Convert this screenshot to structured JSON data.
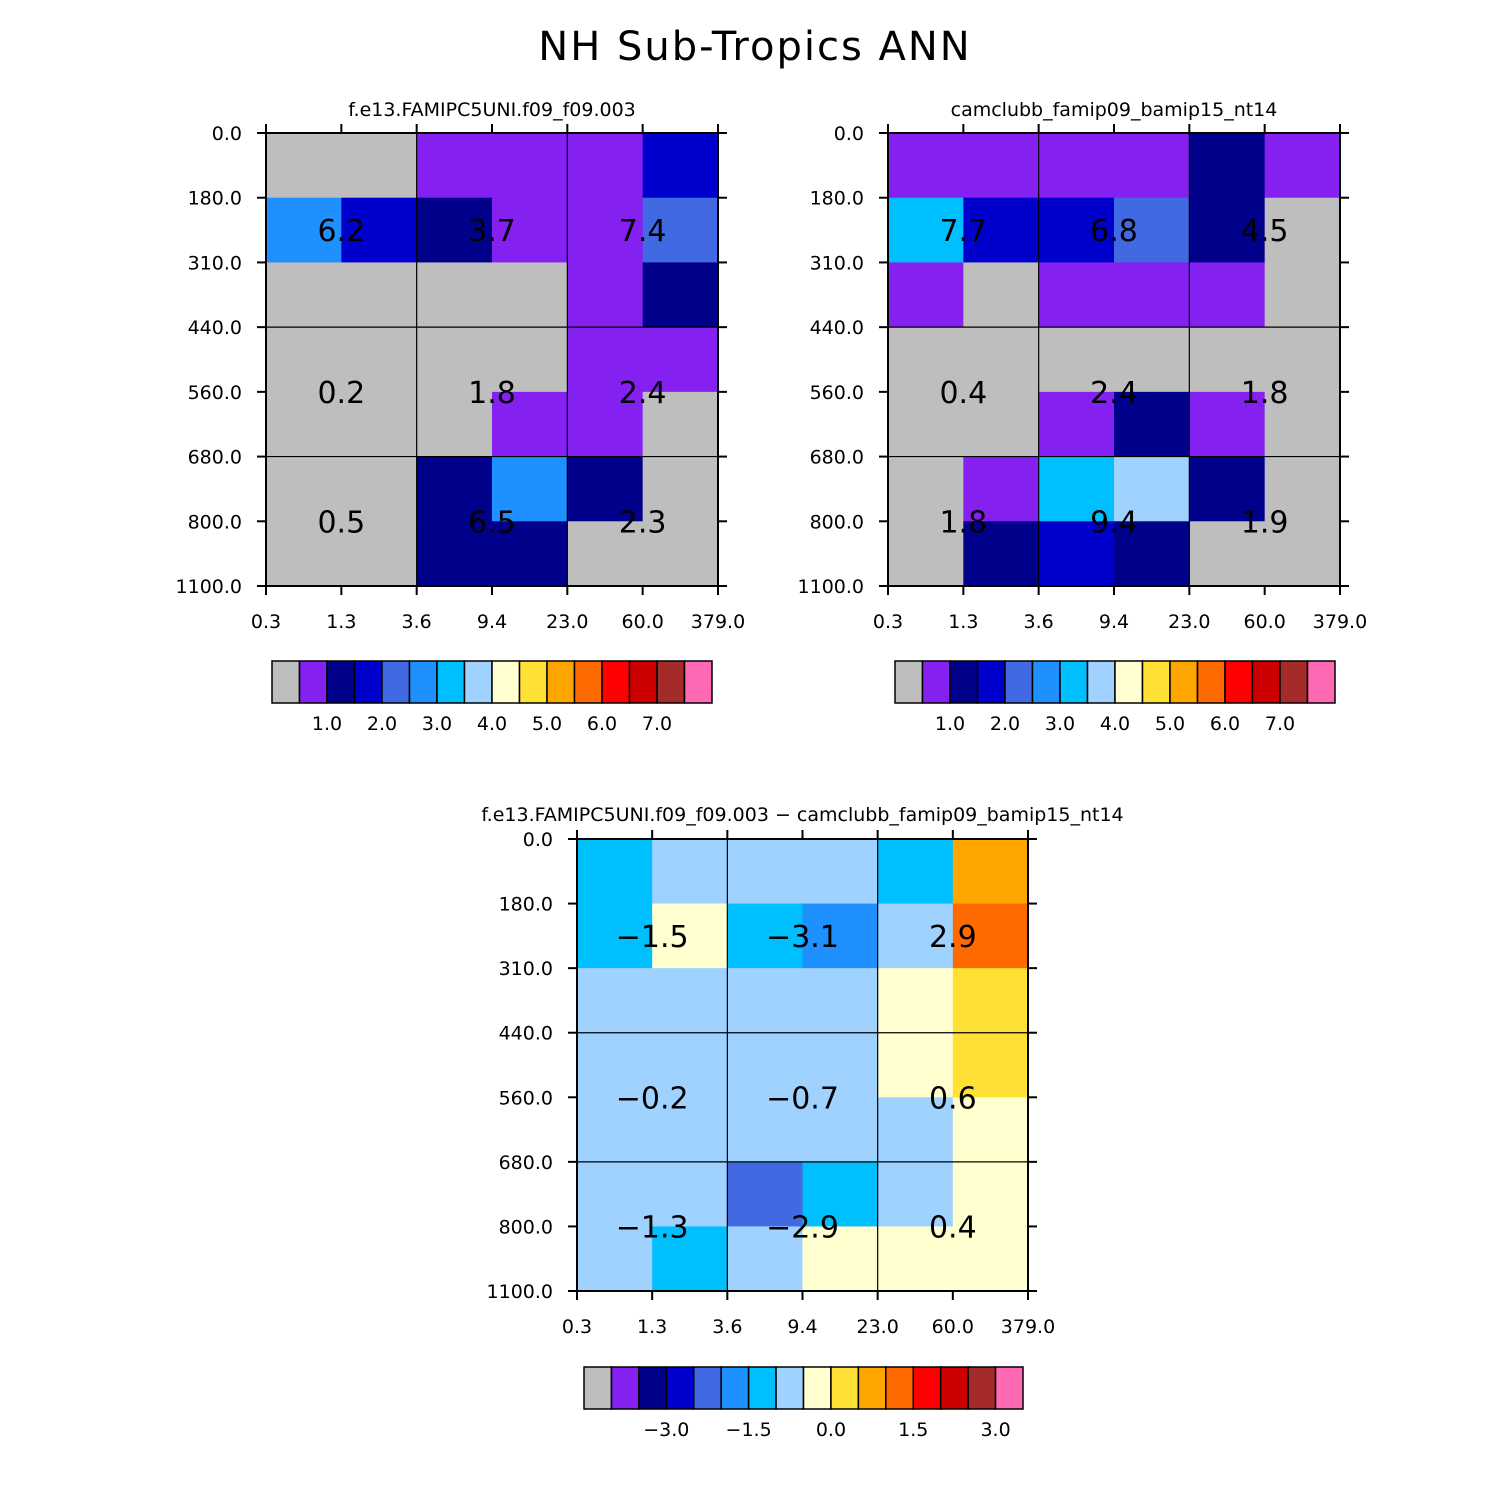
{
  "title": "NH Sub-Tropics ANN",
  "chart_data": [
    {
      "type": "heatmap",
      "title": "f.e13.FAMIPC5UNI.f09_f09.003",
      "x_ticks": [
        "0.3",
        "1.3",
        "3.6",
        "9.4",
        "23.0",
        "60.0",
        "379.0"
      ],
      "y_ticks": [
        "0.0",
        "180.0",
        "310.0",
        "440.0",
        "560.0",
        "680.0",
        "800.0",
        "1100.0"
      ],
      "cells": [
        [
          0,
          0,
          1,
          1,
          1,
          3
        ],
        [
          5,
          3,
          2,
          1,
          1,
          4
        ],
        [
          0,
          0,
          0,
          0,
          1,
          2
        ],
        [
          0,
          0,
          0,
          0,
          1,
          1
        ],
        [
          0,
          0,
          0,
          1,
          1,
          0
        ],
        [
          0,
          0,
          2,
          5,
          2,
          0
        ],
        [
          0,
          0,
          2,
          2,
          0,
          0
        ]
      ],
      "annotations": [
        {
          "row": 0,
          "col": 0,
          "text": "6.2"
        },
        {
          "row": 0,
          "col": 1,
          "text": "3.7"
        },
        {
          "row": 0,
          "col": 2,
          "text": "7.4"
        },
        {
          "row": 1,
          "col": 0,
          "text": "0.2"
        },
        {
          "row": 1,
          "col": 1,
          "text": "1.8"
        },
        {
          "row": 1,
          "col": 2,
          "text": "2.4"
        },
        {
          "row": 2,
          "col": 0,
          "text": "0.5"
        },
        {
          "row": 2,
          "col": 1,
          "text": "6.5"
        },
        {
          "row": 2,
          "col": 2,
          "text": "2.3"
        }
      ],
      "colorbar": {
        "colors": [
          "#bebebe",
          "#8420f0",
          "#00008b",
          "#0000cd",
          "#4169e1",
          "#1e90ff",
          "#00bfff",
          "#a0d2ff",
          "#ffffd0",
          "#ffe135",
          "#ffa500",
          "#ff6a00",
          "#ff0000",
          "#cd0000",
          "#a52a2a",
          "#ff69b4"
        ],
        "labels": [
          "1.0",
          "2.0",
          "3.0",
          "4.0",
          "5.0",
          "6.0",
          "7.0"
        ]
      }
    },
    {
      "type": "heatmap",
      "title": "camclubb_famip09_bamip15_nt14",
      "x_ticks": [
        "0.3",
        "1.3",
        "3.6",
        "9.4",
        "23.0",
        "60.0",
        "379.0"
      ],
      "y_ticks": [
        "0.0",
        "180.0",
        "310.0",
        "440.0",
        "560.0",
        "680.0",
        "800.0",
        "1100.0"
      ],
      "cells": [
        [
          1,
          1,
          1,
          1,
          2,
          1
        ],
        [
          6,
          3,
          3,
          4,
          2,
          0
        ],
        [
          1,
          0,
          1,
          1,
          1,
          0
        ],
        [
          0,
          0,
          0,
          0,
          0,
          0
        ],
        [
          0,
          0,
          1,
          2,
          1,
          0
        ],
        [
          0,
          1,
          6,
          7,
          2,
          0
        ],
        [
          0,
          2,
          3,
          2,
          0,
          0
        ]
      ],
      "annotations": [
        {
          "row": 0,
          "col": 0,
          "text": "7.7"
        },
        {
          "row": 0,
          "col": 1,
          "text": "6.8"
        },
        {
          "row": 0,
          "col": 2,
          "text": "4.5"
        },
        {
          "row": 1,
          "col": 0,
          "text": "0.4"
        },
        {
          "row": 1,
          "col": 1,
          "text": "2.4"
        },
        {
          "row": 1,
          "col": 2,
          "text": "1.8"
        },
        {
          "row": 2,
          "col": 0,
          "text": "1.8"
        },
        {
          "row": 2,
          "col": 1,
          "text": "9.4"
        },
        {
          "row": 2,
          "col": 2,
          "text": "1.9"
        }
      ],
      "colorbar": {
        "colors": [
          "#bebebe",
          "#8420f0",
          "#00008b",
          "#0000cd",
          "#4169e1",
          "#1e90ff",
          "#00bfff",
          "#a0d2ff",
          "#ffffd0",
          "#ffe135",
          "#ffa500",
          "#ff6a00",
          "#ff0000",
          "#cd0000",
          "#a52a2a",
          "#ff69b4"
        ],
        "labels": [
          "1.0",
          "2.0",
          "3.0",
          "4.0",
          "5.0",
          "6.0",
          "7.0"
        ]
      }
    },
    {
      "type": "heatmap",
      "title": "f.e13.FAMIPC5UNI.f09_f09.003 - camclubb_famip09_bamip15_nt14",
      "x_ticks": [
        "0.3",
        "1.3",
        "3.6",
        "9.4",
        "23.0",
        "60.0",
        "379.0"
      ],
      "y_ticks": [
        "0.0",
        "180.0",
        "310.0",
        "440.0",
        "560.0",
        "680.0",
        "800.0",
        "1100.0"
      ],
      "cells": [
        [
          6,
          7,
          7,
          7,
          6,
          10
        ],
        [
          6,
          8,
          6,
          5,
          7,
          11
        ],
        [
          7,
          7,
          7,
          7,
          8,
          9
        ],
        [
          7,
          7,
          7,
          7,
          8,
          9
        ],
        [
          7,
          7,
          7,
          7,
          7,
          8
        ],
        [
          7,
          7,
          4,
          6,
          7,
          8
        ],
        [
          7,
          6,
          7,
          8,
          8,
          8
        ]
      ],
      "annotations": [
        {
          "row": 0,
          "col": 0,
          "text": "-1.5"
        },
        {
          "row": 0,
          "col": 1,
          "text": "-3.1"
        },
        {
          "row": 0,
          "col": 2,
          "text": "2.9"
        },
        {
          "row": 1,
          "col": 0,
          "text": "-0.2"
        },
        {
          "row": 1,
          "col": 1,
          "text": "-0.7"
        },
        {
          "row": 1,
          "col": 2,
          "text": "0.6"
        },
        {
          "row": 2,
          "col": 0,
          "text": "-1.3"
        },
        {
          "row": 2,
          "col": 1,
          "text": "-2.9"
        },
        {
          "row": 2,
          "col": 2,
          "text": "0.4"
        }
      ],
      "colorbar": {
        "colors": [
          "#bebebe",
          "#8420f0",
          "#00008b",
          "#0000cd",
          "#4169e1",
          "#1e90ff",
          "#00bfff",
          "#a0d2ff",
          "#ffffd0",
          "#ffe135",
          "#ffa500",
          "#ff6a00",
          "#ff0000",
          "#cd0000",
          "#a52a2a",
          "#ff69b4"
        ],
        "labels": [
          "-3.0",
          "-1.5",
          "0.0",
          "1.5",
          "3.0"
        ]
      }
    }
  ]
}
